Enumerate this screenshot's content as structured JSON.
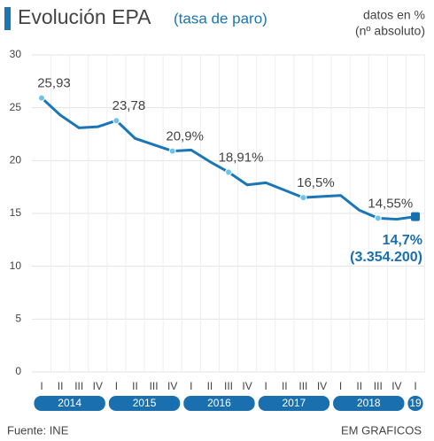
{
  "chart_data": {
    "type": "line",
    "title": "Evolución EPA",
    "title_note": "(tasa de paro)",
    "subtitle": [
      "datos en %",
      "(nº absoluto)"
    ],
    "categories": [
      "I",
      "II",
      "III",
      "IV",
      "I",
      "II",
      "III",
      "IV",
      "I",
      "II",
      "III",
      "IV",
      "I",
      "II",
      "III",
      "IV",
      "I",
      "II",
      "III",
      "IV",
      "I"
    ],
    "years": [
      "2014",
      "2015",
      "2016",
      "2017",
      "2018",
      "19"
    ],
    "series": [
      {
        "color": "#1a76b5",
        "values": [
          25.93,
          24.3,
          23.1,
          23.2,
          23.78,
          22.1,
          21.5,
          20.9,
          21.0,
          19.9,
          18.91,
          17.7,
          17.9,
          17.2,
          16.5,
          16.6,
          16.7,
          15.3,
          14.55,
          14.45,
          14.7
        ],
        "value_labels": [
          "25,93",
          null,
          null,
          null,
          "23,78",
          null,
          null,
          "20,9%",
          null,
          null,
          "18,91%",
          null,
          null,
          null,
          "16,5%",
          null,
          null,
          null,
          "14,55%",
          null,
          "14,7%"
        ]
      }
    ],
    "last_point_note": "(3.354.200)",
    "ylim": [
      0,
      30
    ],
    "yticks": [
      0,
      5,
      10,
      15,
      20,
      25,
      30
    ],
    "grid": true,
    "source": "Fuente: INE",
    "credit": "EM GRAFICOS"
  }
}
